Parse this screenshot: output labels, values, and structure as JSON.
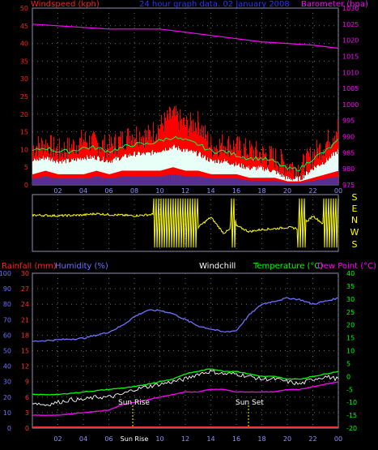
{
  "header": {
    "left_label": "Windspeed (kph)",
    "center_label": "24 hour graph data. 02 January 2008",
    "right_label": "Barometer (hpa)"
  },
  "lower_header": {
    "rain_label": "Rainfall (mm)",
    "humidity_label": "Humidity (%)",
    "windchill_label": "Windchill",
    "temp_label": "Temperature (°C)",
    "dew_label": "Dew Point (°C)"
  },
  "annotations": {
    "sun_rise": "Sun Rise",
    "sun_set": "Sun Set",
    "sun_riset": "Sun Rise"
  },
  "colors": {
    "wind_axis": "#ff2020",
    "wind_fill": "#ff0000",
    "gust_line": "#00ff44",
    "avg_fill": "#e8fff8",
    "baro": "#ff00ff",
    "direction": "#ffff00",
    "humidity": "#7070ff",
    "temperature": "#00ff00",
    "dew": "#ff00ff",
    "windchill": "#ffffff",
    "rain": "#ff3030",
    "grid": "#6a6a6a"
  },
  "chart_data": [
    {
      "type": "area",
      "name": "wind-baro",
      "x_ticks": [
        "02",
        "04",
        "06",
        "08",
        "10",
        "12",
        "14",
        "16",
        "18",
        "20",
        "22",
        "00"
      ],
      "y_left_ticks": [
        0,
        5,
        10,
        15,
        20,
        25,
        30,
        35,
        40,
        45,
        50
      ],
      "y_left_label": "Windspeed (kph)",
      "y_left_lim": [
        0,
        50
      ],
      "y_right_ticks": [
        975,
        980,
        985,
        990,
        995,
        1000,
        1005,
        1010,
        1015,
        1020,
        1025,
        1030
      ],
      "y_right_label": "Barometer (hpa)",
      "y_right_lim": [
        975,
        1030
      ],
      "x_lim": [
        0,
        24
      ],
      "series": [
        {
          "key": "gust",
          "x": [
            0,
            1,
            2,
            3,
            4,
            5,
            6,
            7,
            8,
            9,
            10,
            11,
            12,
            13,
            14,
            15,
            16,
            17,
            18,
            19,
            20,
            21,
            22,
            23,
            24
          ],
          "values": [
            10,
            11,
            9,
            10,
            12,
            11,
            10,
            12,
            14,
            13,
            16,
            19,
            16,
            17,
            10,
            11,
            10,
            9,
            8,
            7,
            5,
            4,
            8,
            11,
            16
          ]
        },
        {
          "key": "wind_avg",
          "x": [
            0,
            1,
            2,
            3,
            4,
            5,
            6,
            7,
            8,
            9,
            10,
            11,
            12,
            13,
            14,
            15,
            16,
            17,
            18,
            19,
            20,
            21,
            22,
            23,
            24
          ],
          "values": [
            8,
            9,
            8,
            8,
            9,
            9,
            8,
            9,
            10,
            10,
            11,
            12,
            11,
            10,
            8,
            8,
            7,
            6,
            6,
            5,
            3,
            3,
            6,
            8,
            11
          ]
        },
        {
          "key": "wind_low",
          "x": [
            0,
            1,
            2,
            3,
            4,
            5,
            6,
            7,
            8,
            9,
            10,
            11,
            12,
            13,
            14,
            15,
            16,
            17,
            18,
            19,
            20,
            21,
            22,
            23,
            24
          ],
          "values": [
            3,
            4,
            3,
            3,
            3,
            4,
            3,
            4,
            4,
            4,
            4,
            5,
            4,
            4,
            3,
            3,
            3,
            2,
            2,
            2,
            1,
            1,
            2,
            3,
            4
          ]
        },
        {
          "key": "baro",
          "x": [
            0,
            2,
            4,
            6,
            8,
            10,
            12,
            14,
            16,
            18,
            20,
            22,
            24
          ],
          "values": [
            1025.0,
            1024.5,
            1024.0,
            1023.5,
            1023.5,
            1023.5,
            1022.5,
            1021.5,
            1020.5,
            1019.5,
            1019.0,
            1018.5,
            1017.5
          ]
        }
      ]
    },
    {
      "type": "line",
      "name": "wind-direction",
      "y_ticks": [
        "S",
        "E",
        "N",
        "W",
        "S"
      ],
      "x_lim": [
        0,
        24
      ],
      "series": [
        {
          "key": "direction",
          "x": [
            0,
            2,
            4,
            5,
            6,
            8,
            9.5,
            10,
            11,
            12,
            13,
            14,
            15,
            16,
            17,
            18,
            19,
            20,
            21,
            22,
            23,
            24
          ],
          "values": [
            235,
            230,
            235,
            245,
            238,
            230,
            240,
            250,
            120,
            200,
            150,
            220,
            110,
            160,
            120,
            135,
            140,
            150,
            140,
            230,
            160,
            200
          ]
        }
      ]
    },
    {
      "type": "line",
      "name": "temp-humidity",
      "x_ticks": [
        "02",
        "04",
        "06",
        "Sun Rise",
        "10",
        "12",
        "14",
        "16",
        "18",
        "20",
        "22",
        "00"
      ],
      "y_humidity_ticks": [
        0,
        10,
        20,
        30,
        40,
        50,
        60,
        70,
        80,
        90,
        100
      ],
      "y_humidity_lim": [
        0,
        100
      ],
      "y_rain_ticks": [
        0,
        3,
        6,
        9,
        12,
        15,
        18,
        21,
        24,
        27,
        30
      ],
      "y_rain_lim": [
        0,
        30
      ],
      "y_temp_ticks": [
        -20,
        -15,
        -10,
        -5,
        0,
        5,
        10,
        15,
        20,
        25,
        30,
        35,
        40
      ],
      "y_temp_lim": [
        -20,
        40
      ],
      "x_lim": [
        0,
        24
      ],
      "series": [
        {
          "key": "humidity",
          "x": [
            0,
            2,
            4,
            6,
            7,
            8,
            9,
            10,
            11,
            12,
            13,
            14,
            15,
            16,
            17,
            18,
            19,
            20,
            21,
            22,
            23,
            24
          ],
          "values": [
            56,
            57,
            58,
            62,
            66,
            72,
            76,
            76,
            74,
            70,
            66,
            64,
            62,
            63,
            73,
            80,
            82,
            84,
            83,
            80,
            82,
            84
          ]
        },
        {
          "key": "temperature",
          "x": [
            0,
            2,
            4,
            6,
            8,
            9,
            10,
            11,
            12,
            13,
            14,
            15,
            16,
            17,
            18,
            19,
            20,
            21,
            22,
            23,
            24
          ],
          "values": [
            -7,
            -7,
            -6,
            -5,
            -4,
            -3,
            -2,
            -1,
            1,
            2,
            3,
            2,
            2,
            1,
            0,
            0,
            -1,
            -1,
            0,
            1,
            2
          ]
        },
        {
          "key": "dew",
          "x": [
            0,
            2,
            4,
            6,
            7,
            8,
            9,
            10,
            11,
            12,
            13,
            14,
            15,
            16,
            17,
            18,
            19,
            20,
            21,
            22,
            23,
            24
          ],
          "values": [
            -15,
            -15,
            -14,
            -13,
            -11,
            -10,
            -9,
            -8,
            -7,
            -6,
            -6,
            -5,
            -5,
            -6,
            -6,
            -6,
            -6,
            -5,
            -5,
            -4,
            -3,
            -2
          ]
        },
        {
          "key": "windchill",
          "x": [
            0,
            1,
            2,
            3,
            4,
            5,
            6,
            7,
            8,
            9,
            10,
            11,
            12,
            13,
            14,
            15,
            16,
            17,
            18,
            19,
            20,
            21,
            22,
            23,
            24
          ],
          "values": [
            -10,
            -11,
            -10,
            -9,
            -9,
            -8,
            -8,
            -7,
            -5,
            -4,
            -3,
            -2,
            -1,
            1,
            2,
            1,
            1,
            0,
            -1,
            -1,
            -2,
            -3,
            -1,
            0,
            -1
          ]
        },
        {
          "key": "rain",
          "x": [
            0,
            24
          ],
          "values": [
            0,
            0
          ]
        }
      ],
      "sun_rise_hour": 8.5,
      "sun_set_hour": 17.0
    }
  ]
}
